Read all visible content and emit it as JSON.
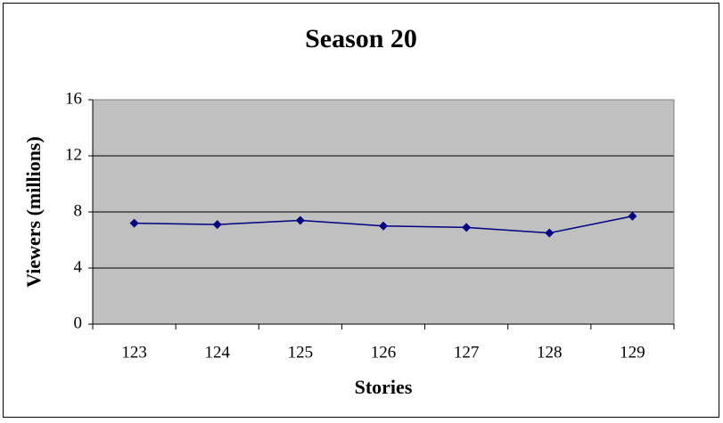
{
  "chart_data": {
    "type": "line",
    "title": "Season 20",
    "x_label": "Stories",
    "y_label": "Viewers (millions)",
    "categories": [
      "123",
      "124",
      "125",
      "126",
      "127",
      "128",
      "129"
    ],
    "values": [
      7.2,
      7.1,
      7.4,
      7.0,
      6.9,
      6.5,
      7.7
    ],
    "color": "#000080",
    "ylim": [
      0,
      16
    ],
    "yticks": [
      0,
      4,
      8,
      12,
      16
    ],
    "grid": true
  }
}
